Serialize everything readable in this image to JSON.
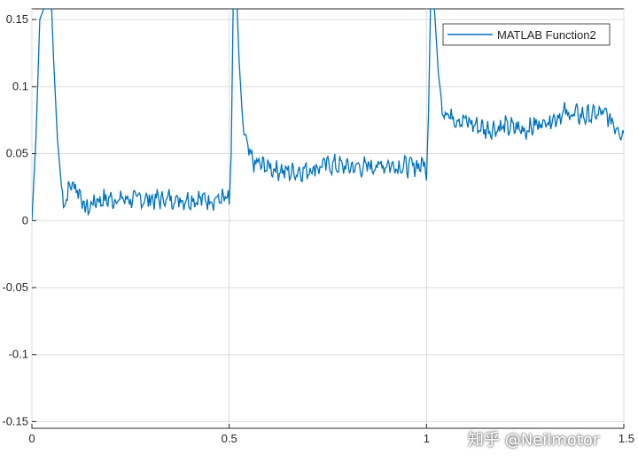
{
  "chart_data": {
    "type": "line",
    "title": "",
    "xlabel": "",
    "ylabel": "",
    "xlim": [
      0,
      1.5
    ],
    "ylim": [
      -0.155,
      0.158
    ],
    "grid": true,
    "legend_position": "top-right",
    "x_ticks": [
      {
        "value": 0,
        "label": "0"
      },
      {
        "value": 0.5,
        "label": "0.5"
      },
      {
        "value": 1,
        "label": "1"
      },
      {
        "value": 1.5,
        "label": "1.5"
      }
    ],
    "y_ticks": [
      {
        "value": 0.15,
        "label": "0.15"
      },
      {
        "value": 0.1,
        "label": "0.1"
      },
      {
        "value": 0.05,
        "label": "0.05"
      },
      {
        "value": 0,
        "label": "0"
      },
      {
        "value": -0.05,
        "label": "-0.05"
      },
      {
        "value": -0.1,
        "label": "-0.1"
      },
      {
        "value": -0.15,
        "label": "-0.15"
      }
    ],
    "series": [
      {
        "name": "MATLAB Function2",
        "color": "#0072BD",
        "description_points": [
          [
            0.0,
            0.0
          ],
          [
            0.01,
            0.06
          ],
          [
            0.02,
            0.15
          ],
          [
            0.03,
            0.158
          ],
          [
            0.05,
            0.158
          ],
          [
            0.055,
            0.12
          ],
          [
            0.065,
            0.06
          ],
          [
            0.075,
            0.025
          ],
          [
            0.08,
            0.012
          ],
          [
            0.09,
            0.02
          ],
          [
            0.1,
            0.028
          ],
          [
            0.11,
            0.025
          ],
          [
            0.12,
            0.022
          ],
          [
            0.13,
            0.012
          ],
          [
            0.14,
            0.008
          ],
          [
            0.16,
            0.015
          ],
          [
            0.2,
            0.016
          ],
          [
            0.25,
            0.016
          ],
          [
            0.3,
            0.016
          ],
          [
            0.35,
            0.016
          ],
          [
            0.4,
            0.016
          ],
          [
            0.45,
            0.016
          ],
          [
            0.495,
            0.016
          ],
          [
            0.5,
            0.012
          ],
          [
            0.505,
            0.05
          ],
          [
            0.51,
            0.158
          ],
          [
            0.52,
            0.158
          ],
          [
            0.525,
            0.12
          ],
          [
            0.535,
            0.07
          ],
          [
            0.545,
            0.055
          ],
          [
            0.56,
            0.043
          ],
          [
            0.6,
            0.04
          ],
          [
            0.65,
            0.036
          ],
          [
            0.7,
            0.038
          ],
          [
            0.75,
            0.042
          ],
          [
            0.8,
            0.04
          ],
          [
            0.85,
            0.04
          ],
          [
            0.9,
            0.042
          ],
          [
            0.95,
            0.04
          ],
          [
            0.995,
            0.042
          ],
          [
            1.0,
            0.03
          ],
          [
            1.005,
            0.08
          ],
          [
            1.01,
            0.158
          ],
          [
            1.02,
            0.158
          ],
          [
            1.03,
            0.11
          ],
          [
            1.04,
            0.085
          ],
          [
            1.06,
            0.078
          ],
          [
            1.1,
            0.074
          ],
          [
            1.15,
            0.068
          ],
          [
            1.2,
            0.07
          ],
          [
            1.25,
            0.068
          ],
          [
            1.3,
            0.074
          ],
          [
            1.35,
            0.08
          ],
          [
            1.4,
            0.078
          ],
          [
            1.45,
            0.08
          ],
          [
            1.5,
            0.065
          ]
        ]
      }
    ]
  },
  "watermark": "知乎 @Neilmotor"
}
